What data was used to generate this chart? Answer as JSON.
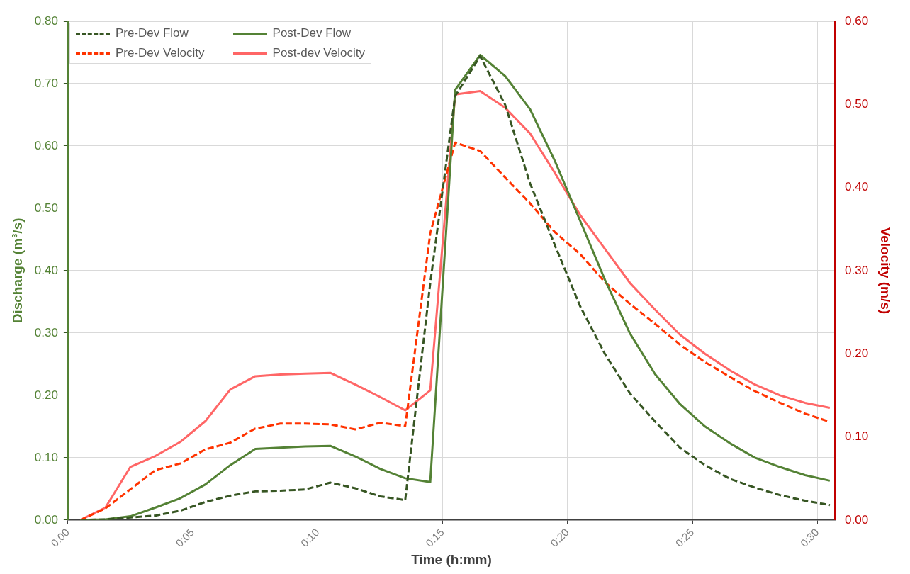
{
  "chart_data": {
    "type": "line",
    "xlabel": "Time (h:mm)",
    "ylabel": "Discharge (m³/s)",
    "y2label": "Velocity (m/s)",
    "x": [
      0.0083,
      0.025,
      0.0417,
      0.0583,
      0.075,
      0.0917,
      0.1083,
      0.125,
      0.1417,
      0.1583,
      0.175,
      0.1917,
      0.2083,
      0.225,
      0.2417,
      0.2583,
      0.275,
      0.2917,
      0.3083,
      0.325,
      0.3417,
      0.3583,
      0.375,
      0.3917,
      0.4083,
      0.425,
      0.4417,
      0.4583,
      0.475,
      0.4917,
      0.5083
    ],
    "xlim": [
      0,
      0.5117
    ],
    "xticks": [
      {
        "value": 0,
        "label": "0:00"
      },
      {
        "value": 0.0833,
        "label": "0:05"
      },
      {
        "value": 0.1667,
        "label": "0:10"
      },
      {
        "value": 0.25,
        "label": "0:15"
      },
      {
        "value": 0.3333,
        "label": "0:20"
      },
      {
        "value": 0.4167,
        "label": "0:25"
      },
      {
        "value": 0.5,
        "label": "0:30"
      }
    ],
    "ylim": [
      0,
      0.8
    ],
    "yticks": [
      {
        "value": 0,
        "label": "0.00"
      },
      {
        "value": 0.1,
        "label": "0.10"
      },
      {
        "value": 0.2,
        "label": "0.20"
      },
      {
        "value": 0.3,
        "label": "0.30"
      },
      {
        "value": 0.4,
        "label": "0.40"
      },
      {
        "value": 0.5,
        "label": "0.50"
      },
      {
        "value": 0.6,
        "label": "0.60"
      },
      {
        "value": 0.7,
        "label": "0.70"
      },
      {
        "value": 0.8,
        "label": "0.80"
      }
    ],
    "y2lim": [
      0,
      0.6
    ],
    "y2ticks": [
      {
        "value": 0,
        "label": "0.00"
      },
      {
        "value": 0.1,
        "label": "0.10"
      },
      {
        "value": 0.2,
        "label": "0.20"
      },
      {
        "value": 0.3,
        "label": "0.30"
      },
      {
        "value": 0.4,
        "label": "0.40"
      },
      {
        "value": 0.5,
        "label": "0.50"
      },
      {
        "value": 0.6,
        "label": "0.60"
      }
    ],
    "grid": true,
    "legend": "top left",
    "marker": "none",
    "series": [
      {
        "name": "Pre-Dev Flow",
        "color": "#375623",
        "line_style": "dashed",
        "values": [
          0,
          0.001,
          0.004,
          0.007,
          0.015,
          0.029,
          0.039,
          0.046,
          0.047,
          0.049,
          0.06,
          0.051,
          0.038,
          0.032,
          0.38,
          0.68,
          0.744,
          0.666,
          0.54,
          0.44,
          0.343,
          0.266,
          0.203,
          0.158,
          0.116,
          0.088,
          0.066,
          0.052,
          0.04,
          0.031,
          0.024
        ]
      },
      {
        "name": "Post-Dev Flow",
        "color": "#548235",
        "line_style": "solid",
        "values": [
          0,
          0.001,
          0.006,
          0.02,
          0.035,
          0.057,
          0.088,
          0.114,
          0.116,
          0.118,
          0.119,
          0.102,
          0.082,
          0.067,
          0.061,
          0.69,
          0.746,
          0.712,
          0.659,
          0.575,
          0.48,
          0.385,
          0.299,
          0.234,
          0.186,
          0.15,
          0.123,
          0.1,
          0.085,
          0.072,
          0.063
        ]
      },
      {
        "name": "Pre-Dev Velocity",
        "color": "#ff3300",
        "line_style": "dashed",
        "axis": "y2",
        "values": [
          0,
          0.014,
          0.037,
          0.06,
          0.068,
          0.085,
          0.093,
          0.11,
          0.116,
          0.116,
          0.115,
          0.109,
          0.117,
          0.113,
          0.345,
          0.454,
          0.444,
          0.412,
          0.381,
          0.346,
          0.32,
          0.286,
          0.26,
          0.236,
          0.211,
          0.19,
          0.172,
          0.155,
          0.141,
          0.128,
          0.118
        ]
      },
      {
        "name": "Post-dev Velocity",
        "color": "#ff6666",
        "line_style": "solid",
        "axis": "y2",
        "values": [
          0,
          0.015,
          0.064,
          0.077,
          0.094,
          0.119,
          0.157,
          0.173,
          0.175,
          0.176,
          0.177,
          0.163,
          0.148,
          0.132,
          0.156,
          0.512,
          0.516,
          0.496,
          0.465,
          0.417,
          0.367,
          0.326,
          0.285,
          0.253,
          0.223,
          0.2,
          0.18,
          0.163,
          0.15,
          0.141,
          0.135
        ]
      }
    ]
  }
}
